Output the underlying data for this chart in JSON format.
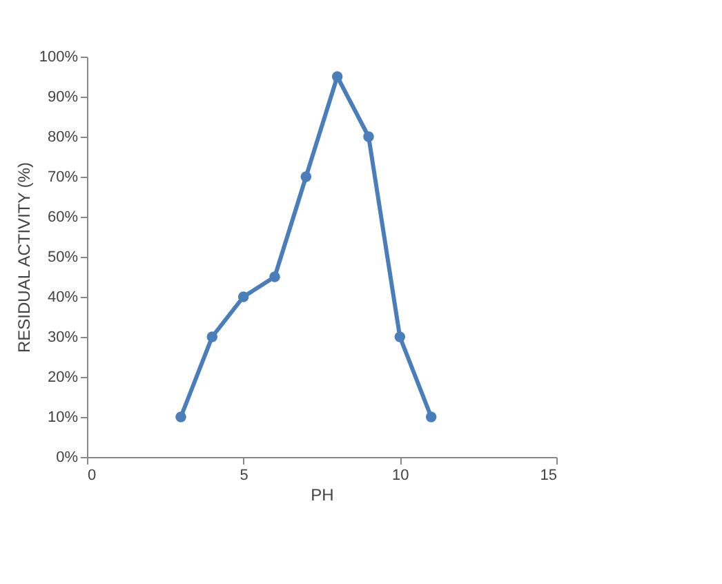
{
  "chart_data": {
    "type": "line",
    "xlabel": "PH",
    "ylabel": "RESIDUAL ACTIVITY (%)",
    "x": [
      3,
      4,
      5,
      6,
      7,
      8,
      9,
      10,
      11
    ],
    "series": [
      {
        "color": "#4a7ebb",
        "values": [
          10,
          30,
          40,
          45,
          70,
          95,
          80,
          30,
          10
        ]
      }
    ],
    "xlim": [
      0,
      15
    ],
    "xticks": [
      0,
      5,
      10,
      15
    ],
    "ylim": [
      0,
      100
    ],
    "yticks": [
      {
        "value": 0,
        "label": "0%"
      },
      {
        "value": 10,
        "label": "10%"
      },
      {
        "value": 20,
        "label": "20%"
      },
      {
        "value": 30,
        "label": "30%"
      },
      {
        "value": 40,
        "label": "40%"
      },
      {
        "value": 50,
        "label": "50%"
      },
      {
        "value": 60,
        "label": "60%"
      },
      {
        "value": 70,
        "label": "70%"
      },
      {
        "value": 80,
        "label": "80%"
      },
      {
        "value": 90,
        "label": "90%"
      },
      {
        "value": 100,
        "label": "100%"
      }
    ],
    "grid": false,
    "marker": "circle",
    "line_style": "solid"
  }
}
